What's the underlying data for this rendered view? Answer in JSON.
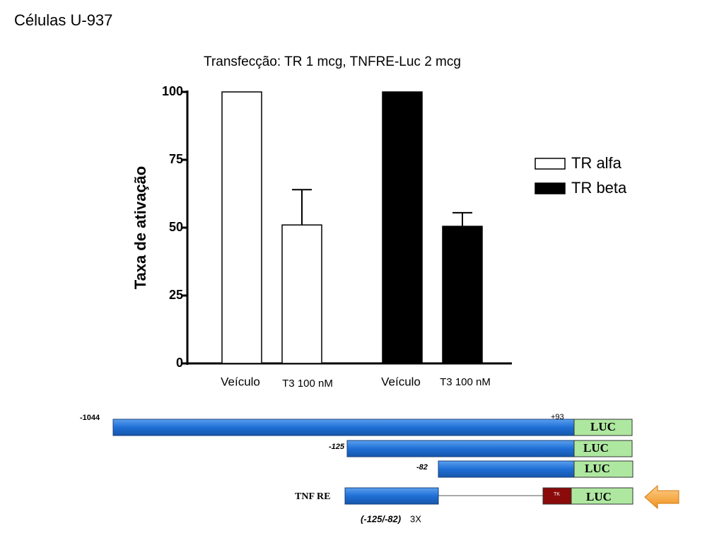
{
  "slide_title": "Células U-937",
  "chart_data": {
    "type": "bar",
    "title": "Transfecção: TR 1 mcg, TNFRE-Luc 2 mcg",
    "y_label": "Taxa de ativação",
    "categories": [
      "Veículo",
      "T3 100 nM",
      "Veículo",
      "T3 100 nM"
    ],
    "series": [
      {
        "name": "TR alfa",
        "color": "#ffffff",
        "values": [
          100,
          51,
          null,
          null
        ],
        "errors": [
          null,
          13,
          null,
          null
        ]
      },
      {
        "name": "TR beta",
        "color": "#000000",
        "values": [
          null,
          null,
          100,
          50.5
        ],
        "errors": [
          null,
          null,
          null,
          5
        ]
      }
    ],
    "ylim": [
      0,
      100
    ],
    "yticks": [
      0,
      25,
      50,
      75,
      100
    ],
    "grid": false,
    "legend": "right"
  },
  "diagram": {
    "rows": [
      {
        "start": "-1044",
        "end": "+93",
        "reporter": "LUC"
      },
      {
        "start": "-125",
        "reporter": "LUC"
      },
      {
        "start": "-82",
        "reporter": "LUC"
      },
      {
        "start": "TNF RE",
        "element": "TK",
        "reporter": "LUC"
      }
    ],
    "caption_italic": "(-125/-82)",
    "caption": "3X"
  }
}
